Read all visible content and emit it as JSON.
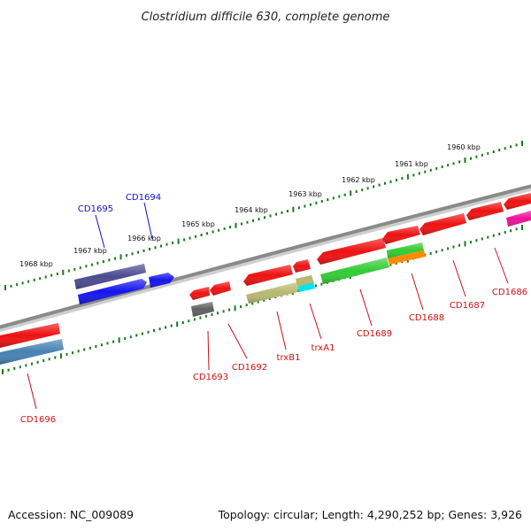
{
  "title": "Clostridium difficile 630, complete genome",
  "footer": {
    "accession": "Accession: NC_009089",
    "topology": "Topology: circular; Length: 4,290,252 bp; Genes: 3,926"
  },
  "colors": {
    "backbone": "#8a8a8a",
    "tick": "#1a7a1a",
    "label_forward": "#1010cc",
    "label_reverse": "#cc1111",
    "gene_red": "#ee1111",
    "gene_blue": "#1414ee",
    "gene_slate": "#4a4a90",
    "gene_gray": "#606060",
    "gene_olive": "#b8b870",
    "gene_cyan": "#00e5ee",
    "gene_green": "#33cc33",
    "gene_orange": "#ff8c00",
    "gene_magenta": "#ee1199",
    "gene_steel": "#4682b4"
  },
  "kbp_labels": [
    "1968 kbp",
    "1967 kbp",
    "1966 kbp",
    "1965 kbp",
    "1964 kbp",
    "1963 kbp",
    "1962 kbp",
    "1961 kbp",
    "1960 kbp"
  ],
  "gene_labels": {
    "CD1695": "CD1695",
    "CD1694": "CD1694",
    "CD1693": "CD1693",
    "CD1692": "CD1692",
    "trxB1": "trxB1",
    "trxA1": "trxA1",
    "CD1689": "CD1689",
    "CD1688": "CD1688",
    "CD1687": "CD1687",
    "CD1686": "CD1686",
    "CD1696": "CD1696"
  }
}
